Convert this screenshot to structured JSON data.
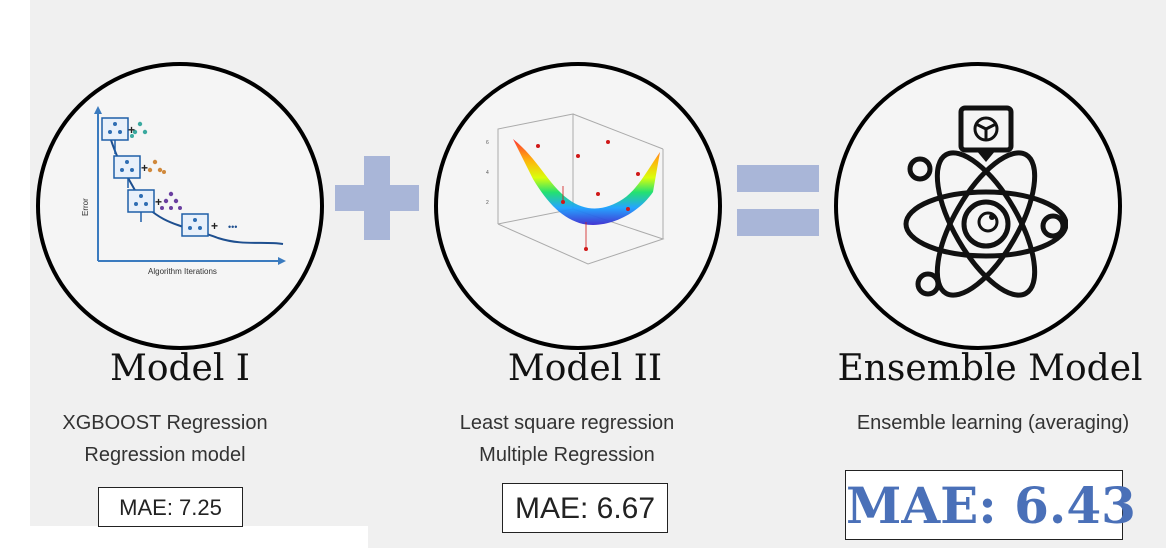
{
  "models": [
    {
      "title": "Model I",
      "lines": [
        "XGBOOST Regression",
        "Regression model"
      ],
      "mae": "MAE: 7.25",
      "diagram": {
        "ylabel": "Error",
        "xlabel": "Algorithm Iterations",
        "ellipsis": "•••"
      }
    },
    {
      "title": "Model II",
      "lines": [
        "Least square regression",
        "Multiple Regression"
      ],
      "mae": "MAE: 6.67"
    },
    {
      "title": "Ensemble Model",
      "lines": [
        "Ensemble learning (averaging)"
      ],
      "mae": "MAE: 6.43"
    }
  ],
  "operators": {
    "plus": "plus",
    "equals": "equals"
  },
  "colors": {
    "operator": "#a9b6d8",
    "ensemble_mae": "#4a70b8"
  },
  "icons": [
    "xgboost-diagram",
    "surface-plot",
    "atom-ai-icon"
  ]
}
